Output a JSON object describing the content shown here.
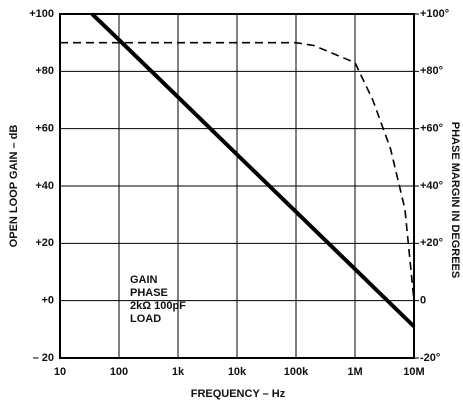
{
  "chart_data": {
    "type": "line",
    "x_label": "FREQUENCY – Hz",
    "y_label": "OPEN LOOP GAIN – dB",
    "y2_label": "PHASE MARGIN IN DEGREES",
    "log_x": true,
    "grid": true,
    "xlim": [
      10,
      10000000
    ],
    "xticks": [
      10,
      100,
      {
        "value": 1000,
        "label": "1k"
      },
      {
        "value": 10000,
        "label": "10k"
      },
      {
        "value": 100000,
        "label": "100k"
      },
      {
        "value": 1000000,
        "label": "1M"
      },
      {
        "value": 10000000,
        "label": "10M"
      }
    ],
    "ylim": [
      -20,
      100
    ],
    "yticks": [
      {
        "value": 100,
        "label": "+100"
      },
      {
        "value": 80,
        "label": "+80"
      },
      {
        "value": 60,
        "label": "+60"
      },
      {
        "value": 40,
        "label": "+40"
      },
      {
        "value": 20,
        "label": "+20"
      },
      {
        "value": 0,
        "label": "+0"
      },
      {
        "value": -20,
        "label": "– 20"
      }
    ],
    "y2lim": [
      -20,
      100
    ],
    "y2ticks": [
      {
        "value": 100,
        "label": "+100°"
      },
      {
        "value": 80,
        "label": "+80°"
      },
      {
        "value": 60,
        "label": "+60°"
      },
      {
        "value": 40,
        "label": "+40°"
      },
      {
        "value": 20,
        "label": "+20°"
      },
      0,
      {
        "value": -20,
        "label": "-20°"
      }
    ],
    "series": [
      {
        "name": "GAIN",
        "color": "#000000",
        "dash": false,
        "x": [
          35,
          100,
          1000,
          10000,
          100000,
          1000000,
          10000000
        ],
        "values": [
          100,
          91,
          71,
          51,
          31,
          11,
          -9
        ]
      },
      {
        "name": "PHASE",
        "color": "#000000",
        "dash": true,
        "axis": "y2",
        "x": [
          10,
          100,
          1000,
          10000,
          100000,
          200000,
          1000000,
          2000000,
          4000000,
          7000000,
          10000000
        ],
        "values": [
          90,
          90,
          90,
          90,
          90,
          89,
          83,
          70,
          53,
          32,
          0
        ]
      }
    ],
    "annotations": [
      "2kΩ 100pF",
      "LOAD"
    ]
  }
}
